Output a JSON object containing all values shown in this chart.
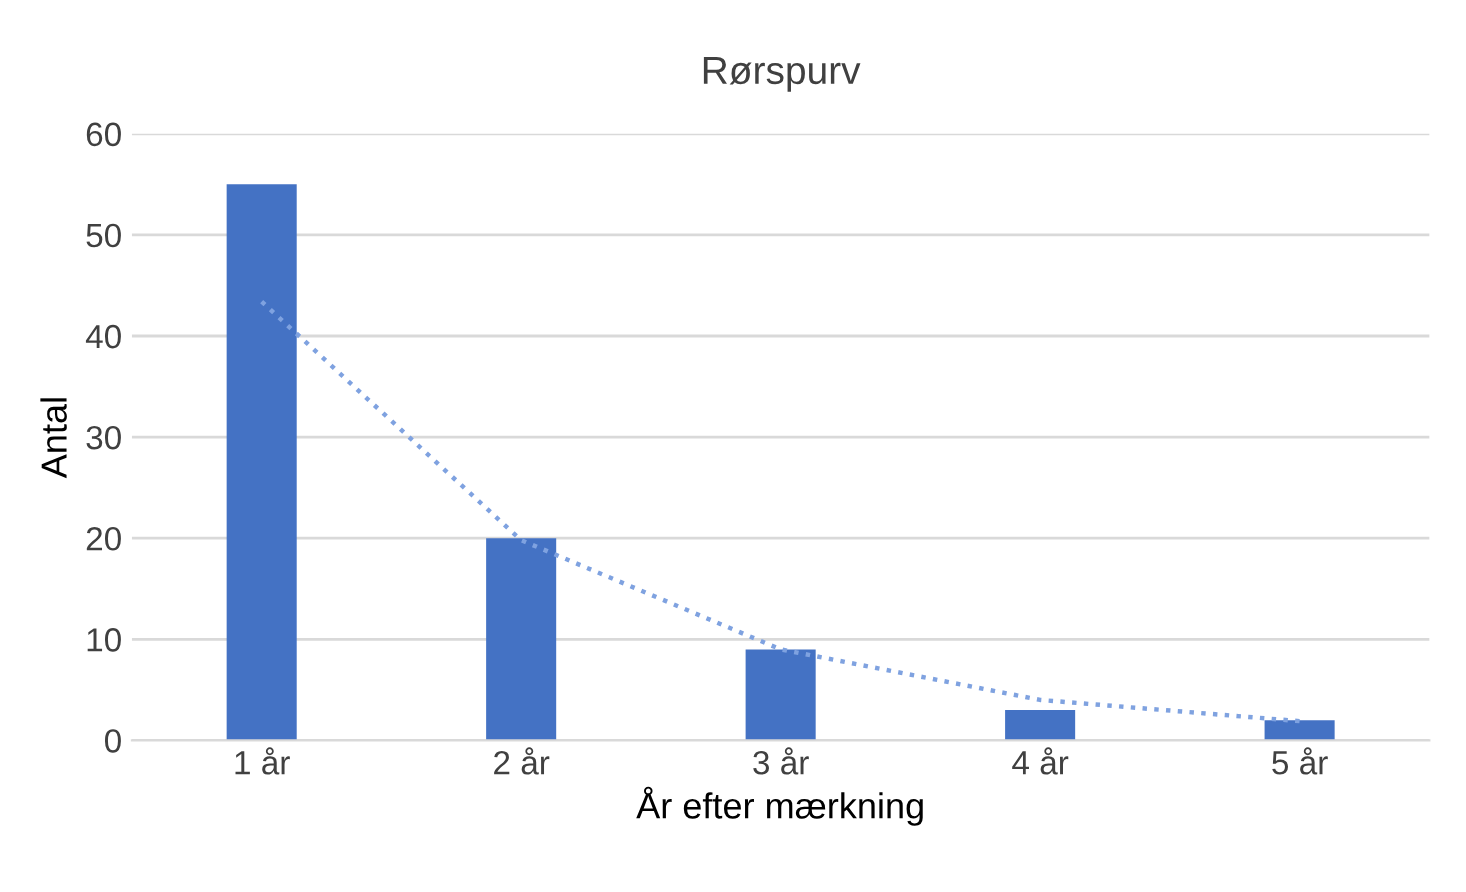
{
  "chart_data": {
    "type": "bar",
    "title": "Rørspurv",
    "xlabel": "År efter mærkning",
    "ylabel": "Antal",
    "categories": [
      "1 år",
      "2 år",
      "3 år",
      "4 år",
      "5 år"
    ],
    "series": [
      {
        "color": "#4472c4",
        "values": [
          55,
          20,
          9,
          3,
          2
        ]
      },
      {
        "type": "line",
        "color": "#7fa2e0",
        "line_style": "dotted",
        "values": [
          43.4,
          19.8,
          9,
          4,
          1.9
        ]
      }
    ],
    "ylim": [
      0,
      60
    ],
    "yticks": [
      0,
      10,
      20,
      30,
      40,
      50,
      60
    ],
    "grid": "y",
    "legend": false
  }
}
